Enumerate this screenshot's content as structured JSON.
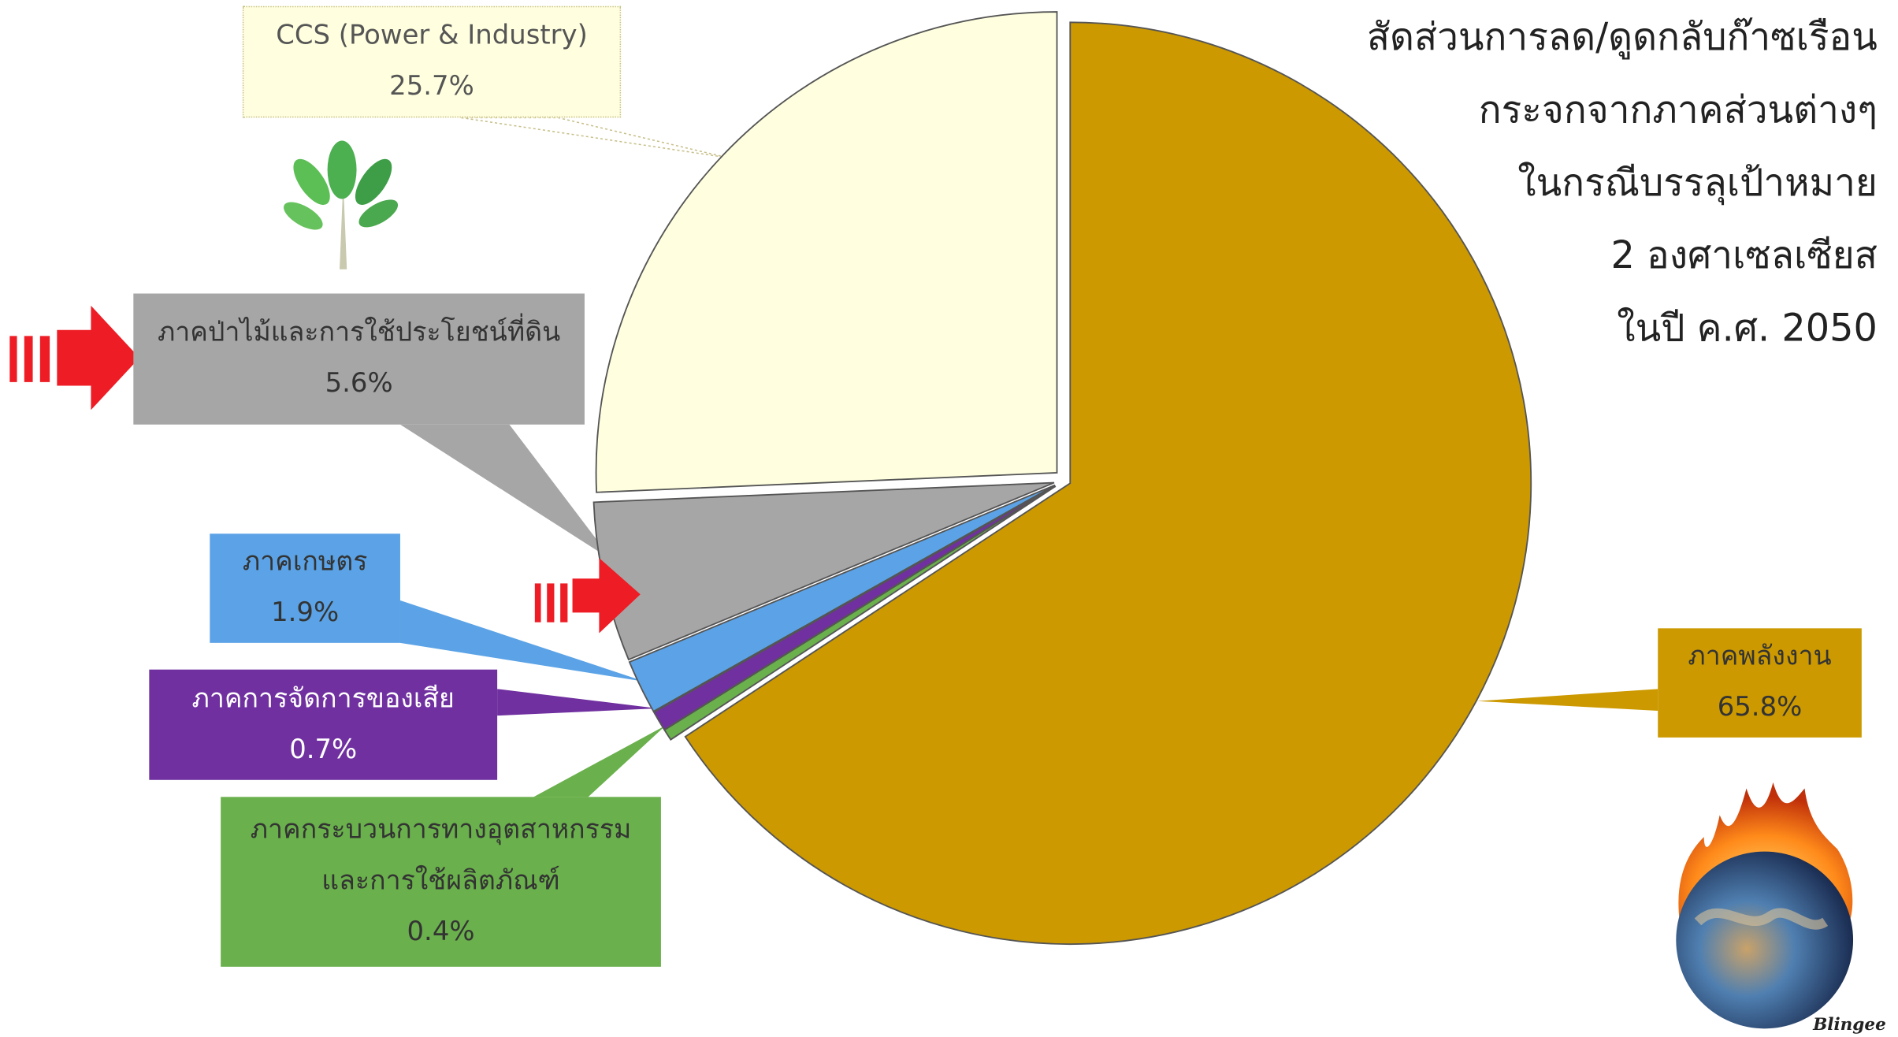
{
  "chart_data": {
    "type": "pie",
    "title": [
      "สัดส่วนการลด/ดูดกลับก๊าซเรือน",
      "กระจกจากภาคส่วนต่างๆ",
      "ในกรณีบรรลุเป้าหมาย",
      "2 องศาเซลเซียส",
      "ในปี ค.ศ. 2050"
    ],
    "categories": [
      "ภาคพลังงาน",
      "ภาคกระบวนการทางอุตสาหกรรม\nและการใช้ผลิตภัณฑ์",
      "ภาคการจัดการของเสีย",
      "ภาคเกษตร",
      "ภาคป่าไม้และการใช้ประโยชน์ที่ดิน",
      "CCS (Power & Industry)"
    ],
    "values": [
      65.8,
      0.4,
      0.7,
      1.9,
      5.6,
      25.7
    ],
    "value_labels": [
      "65.8%",
      "0.4%",
      "0.7%",
      "1.9%",
      "5.6%",
      "25.7%"
    ],
    "colors": [
      "#cc9900",
      "#6ab04c",
      "#7030a0",
      "#5ba3e6",
      "#a6a6a6",
      "#ffffe0"
    ],
    "watermark": "Blingee"
  }
}
